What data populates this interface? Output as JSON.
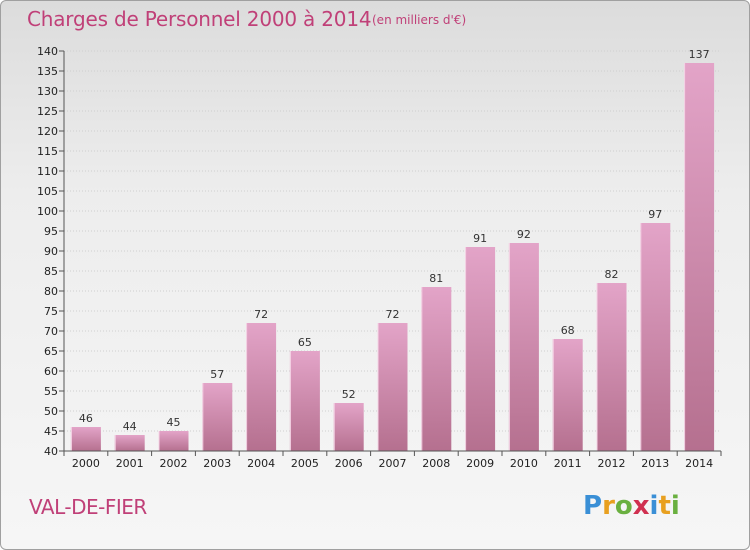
{
  "title": "Charges de Personnel 2000 à 2014",
  "unit_note": "(en milliers d'€)",
  "commune": "VAL-DE-FIER",
  "brand": {
    "letters": [
      "P",
      "r",
      "o",
      "x",
      "i",
      "t",
      "i"
    ],
    "colors": [
      "#3a8fd6",
      "#e8a020",
      "#6ab040",
      "#d03050",
      "#3a8fd6",
      "#e8a020",
      "#6ab040"
    ]
  },
  "colors": {
    "accent": "#c04078",
    "bar_top": "#e3a4c8",
    "bar_bottom": "#b5708f"
  },
  "chart_data": {
    "type": "bar",
    "categories": [
      "2000",
      "2001",
      "2002",
      "2003",
      "2004",
      "2005",
      "2006",
      "2007",
      "2008",
      "2009",
      "2010",
      "2011",
      "2012",
      "2013",
      "2014"
    ],
    "values": [
      46,
      44,
      45,
      57,
      72,
      65,
      52,
      72,
      81,
      91,
      92,
      68,
      82,
      97,
      137
    ],
    "title": "Charges de Personnel 2000 à 2014",
    "ylim": [
      40,
      140
    ],
    "ytick_step": 5,
    "grid": true,
    "legend": "none"
  }
}
